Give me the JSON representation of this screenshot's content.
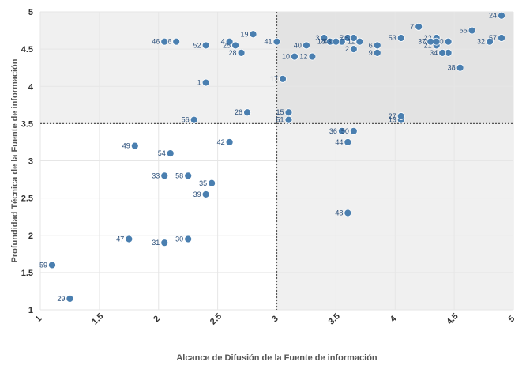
{
  "chart_data": {
    "type": "scatter",
    "xlabel": "Alcance de Difusión de la Fuente de información",
    "ylabel": "Profundidad Técnica de la Fuente de información",
    "xlim": [
      1,
      5
    ],
    "ylim": [
      1,
      5
    ],
    "x_ticks": [
      "1",
      "1.5",
      "2",
      "2.5",
      "3",
      "3.5",
      "4",
      "4.5",
      "5"
    ],
    "y_ticks": [
      "1",
      "1.5",
      "2",
      "2.5",
      "3",
      "3.5",
      "4",
      "4.5",
      "5"
    ],
    "x_divider": 3,
    "y_divider": 3.5,
    "colors": {
      "point": "#4a7fb0",
      "quadrant": "#f0f0f0",
      "quadrant_strong": "#e3e3e3",
      "divider": "#555555"
    },
    "points": [
      {
        "label": "1",
        "x": 2.4,
        "y": 4.05
      },
      {
        "label": "2",
        "x": 3.65,
        "y": 4.5
      },
      {
        "label": "3",
        "x": 3.4,
        "y": 4.65
      },
      {
        "label": "4",
        "x": 2.6,
        "y": 4.6
      },
      {
        "label": "5",
        "x": 3.6,
        "y": 4.65
      },
      {
        "label": "6",
        "x": 3.85,
        "y": 4.55
      },
      {
        "label": "7",
        "x": 4.2,
        "y": 4.8
      },
      {
        "label": "8",
        "x": 3.55,
        "y": 4.6
      },
      {
        "label": "9",
        "x": 3.85,
        "y": 4.45
      },
      {
        "label": "10",
        "x": 3.15,
        "y": 4.4
      },
      {
        "label": "11",
        "x": 3.7,
        "y": 4.6
      },
      {
        "label": "12",
        "x": 3.3,
        "y": 4.4
      },
      {
        "label": "13",
        "x": 4.05,
        "y": 3.55
      },
      {
        "label": "14",
        "x": 4.45,
        "y": 4.45
      },
      {
        "label": "15",
        "x": 3.1,
        "y": 3.65
      },
      {
        "label": "16",
        "x": 2.15,
        "y": 4.6
      },
      {
        "label": "17",
        "x": 3.05,
        "y": 4.1
      },
      {
        "label": "18",
        "x": 3.45,
        "y": 4.6
      },
      {
        "label": "19",
        "x": 2.8,
        "y": 4.7
      },
      {
        "label": "20",
        "x": 4.45,
        "y": 4.6
      },
      {
        "label": "21",
        "x": 4.35,
        "y": 4.55
      },
      {
        "label": "22",
        "x": 4.35,
        "y": 4.65
      },
      {
        "label": "23",
        "x": 4.35,
        "y": 4.6
      },
      {
        "label": "24",
        "x": 4.9,
        "y": 4.95
      },
      {
        "label": "25",
        "x": 2.65,
        "y": 4.55
      },
      {
        "label": "26",
        "x": 2.75,
        "y": 3.65
      },
      {
        "label": "27",
        "x": 4.05,
        "y": 3.6
      },
      {
        "label": "28",
        "x": 2.7,
        "y": 4.45
      },
      {
        "label": "29",
        "x": 1.25,
        "y": 1.15
      },
      {
        "label": "30",
        "x": 2.25,
        "y": 1.95
      },
      {
        "label": "31",
        "x": 2.05,
        "y": 1.9
      },
      {
        "label": "32",
        "x": 4.8,
        "y": 4.6
      },
      {
        "label": "33",
        "x": 2.05,
        "y": 2.8
      },
      {
        "label": "34",
        "x": 4.4,
        "y": 4.45
      },
      {
        "label": "35",
        "x": 2.45,
        "y": 2.7
      },
      {
        "label": "36",
        "x": 3.55,
        "y": 3.4
      },
      {
        "label": "37",
        "x": 4.3,
        "y": 4.6
      },
      {
        "label": "38",
        "x": 4.55,
        "y": 4.25
      },
      {
        "label": "39",
        "x": 2.4,
        "y": 2.55
      },
      {
        "label": "40",
        "x": 3.25,
        "y": 4.55
      },
      {
        "label": "41",
        "x": 3.0,
        "y": 4.6
      },
      {
        "label": "42",
        "x": 2.6,
        "y": 3.25
      },
      {
        "label": "43",
        "x": 3.5,
        "y": 4.6
      },
      {
        "label": "44",
        "x": 3.6,
        "y": 3.25
      },
      {
        "label": "45",
        "x": 3.65,
        "y": 4.65
      },
      {
        "label": "46",
        "x": 2.05,
        "y": 4.6
      },
      {
        "label": "47",
        "x": 1.75,
        "y": 1.95
      },
      {
        "label": "48",
        "x": 3.6,
        "y": 2.3
      },
      {
        "label": "49",
        "x": 1.8,
        "y": 3.2
      },
      {
        "label": "50",
        "x": 3.65,
        "y": 3.4
      },
      {
        "label": "51",
        "x": 3.1,
        "y": 3.55
      },
      {
        "label": "52",
        "x": 2.4,
        "y": 4.55
      },
      {
        "label": "53",
        "x": 4.05,
        "y": 4.65
      },
      {
        "label": "54",
        "x": 2.1,
        "y": 3.1
      },
      {
        "label": "55",
        "x": 4.65,
        "y": 4.75
      },
      {
        "label": "56",
        "x": 2.3,
        "y": 3.55
      },
      {
        "label": "57",
        "x": 4.9,
        "y": 4.65
      },
      {
        "label": "58",
        "x": 2.25,
        "y": 2.8
      },
      {
        "label": "59",
        "x": 1.1,
        "y": 1.6
      }
    ]
  }
}
